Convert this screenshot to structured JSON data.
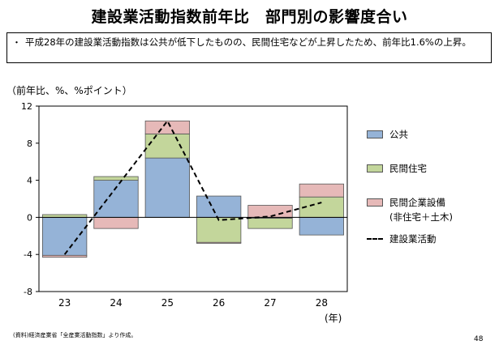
{
  "title": "建設業活動指数前年比　部門別の影響度合い",
  "summary": {
    "bullet": "・",
    "text": "平成28年の建設業活動指数は公共が低下したものの、民間住宅などが上昇したため、前年比1.6%の上昇。"
  },
  "unit_label": "（前年比、%、%ポイント）",
  "year_label": "(年)",
  "footnote": "(資料)経済産業省「全産業活動指数」より作成。",
  "page_number": "48",
  "colors": {
    "public": "#95b3d7",
    "housing": "#c3d69b",
    "enterprise": "#e6b9b8",
    "edge": "#555555"
  },
  "legend": {
    "public": "公共",
    "housing": "民間住宅",
    "enterprise": "民間企業設備",
    "enterprise_sub": "(非住宅＋土木)",
    "activity": "建設業活動"
  },
  "chart_data": {
    "type": "bar",
    "stacked": true,
    "categories": [
      "23",
      "24",
      "25",
      "26",
      "27",
      "28"
    ],
    "yticks": [
      12,
      8,
      4,
      0,
      -4,
      -8
    ],
    "ylim": [
      -8,
      12
    ],
    "series": [
      {
        "name": "公共",
        "values": [
          -4.1,
          4.0,
          6.4,
          2.3,
          -0.1,
          -1.9
        ]
      },
      {
        "name": "民間住宅",
        "values": [
          0.3,
          0.4,
          2.6,
          -2.7,
          -1.1,
          2.2
        ]
      },
      {
        "name": "民間企業設備",
        "values": [
          -0.2,
          -1.2,
          1.4,
          -0.1,
          1.3,
          1.4
        ]
      }
    ],
    "line": {
      "name": "建設業活動",
      "values": [
        -4.0,
        3.2,
        10.4,
        -0.3,
        0.1,
        1.6
      ],
      "style": "dashed"
    },
    "legend_position": "right"
  }
}
